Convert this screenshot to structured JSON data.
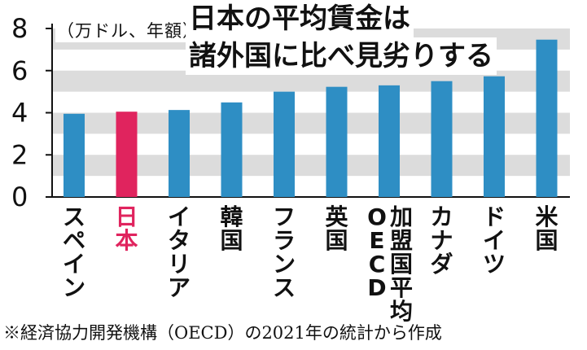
{
  "header": {
    "unit": "（万ドル、年額）",
    "title_line1": "日本の平均賃金は",
    "title_line2": "諸外国に比べ見劣りする"
  },
  "footnote": "※経済協力開発機構（OECD）の2021年の統計から作成",
  "colors": {
    "bar_default": "#2e8ec4",
    "bar_highlight": "#e0245e",
    "band": "#dcdcdc",
    "text": "#111111"
  },
  "chart_data": {
    "type": "bar",
    "categories": [
      "スペイン",
      "日本",
      "イタリア",
      "韓国",
      "フランス",
      "英国",
      "OECD加盟国平均",
      "カナダ",
      "ドイツ",
      "米国"
    ],
    "category_label_lines": [
      [
        "スペイン"
      ],
      [
        "日本"
      ],
      [
        "イタリア"
      ],
      [
        "韓国"
      ],
      [
        "フランス"
      ],
      [
        "英国"
      ],
      [
        "加盟国平均",
        "OECD"
      ],
      [
        "カナダ"
      ],
      [
        "ドイツ"
      ],
      [
        "米国"
      ]
    ],
    "values": [
      3.95,
      4.05,
      4.13,
      4.49,
      5.0,
      5.23,
      5.3,
      5.5,
      5.73,
      7.47
    ],
    "highlight_index": 1,
    "ylim": [
      0,
      8
    ],
    "yticks": [
      0,
      2,
      4,
      6,
      8
    ],
    "ylabel": "（万ドル、年額）",
    "title": "日本の平均賃金は諸外国に比べ見劣りする",
    "grid": "alternating horizontal bands"
  }
}
